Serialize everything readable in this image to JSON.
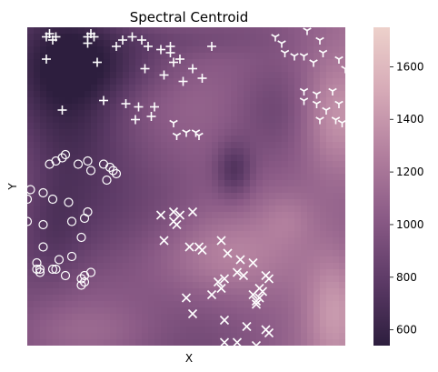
{
  "chart_data": {
    "type": "heatmap",
    "title": "Spectral Centroid",
    "xlabel": "X",
    "ylabel": "Y",
    "x_range": [
      0,
      1
    ],
    "y_range": [
      0,
      1
    ],
    "colorbar": {
      "min": 540,
      "max": 1750,
      "ticks": [
        600,
        800,
        1000,
        1200,
        1400,
        1600
      ],
      "tick_labels": [
        "600",
        "800",
        "1000",
        "1200",
        "1400",
        "1600"
      ],
      "color_stops": [
        "#2d1e3e",
        "#5c3a66",
        "#8a5a86",
        "#b27f9e",
        "#d6aab7",
        "#edd1cb"
      ]
    },
    "field_features": [
      {
        "type": "low",
        "x": 0.12,
        "y": 0.78,
        "sx": 0.18,
        "sy": 0.4,
        "amp": -330
      },
      {
        "type": "low",
        "x": 0.3,
        "y": 0.88,
        "sx": 0.25,
        "sy": 0.1,
        "amp": -170
      },
      {
        "type": "low",
        "x": 0.65,
        "y": 0.55,
        "sx": 0.06,
        "sy": 0.09,
        "amp": -300
      },
      {
        "type": "low",
        "x": 0.78,
        "y": 0.75,
        "sx": 0.14,
        "sy": 0.14,
        "amp": -120
      },
      {
        "type": "low",
        "x": 0.08,
        "y": 0.35,
        "sx": 0.1,
        "sy": 0.18,
        "amp": -140
      },
      {
        "type": "low",
        "x": 0.5,
        "y": 0.96,
        "sx": 0.25,
        "sy": 0.05,
        "amp": -110
      },
      {
        "type": "high",
        "x": 0.97,
        "y": 0.72,
        "sx": 0.12,
        "sy": 0.18,
        "amp": 420
      },
      {
        "type": "high",
        "x": 0.97,
        "y": 0.12,
        "sx": 0.1,
        "sy": 0.18,
        "amp": 380
      },
      {
        "type": "high",
        "x": 0.6,
        "y": 0.28,
        "sx": 0.22,
        "sy": 0.12,
        "amp": 200
      },
      {
        "type": "high",
        "x": 0.2,
        "y": 0.05,
        "sx": 0.2,
        "sy": 0.08,
        "amp": 80
      },
      {
        "type": "high",
        "x": 0.82,
        "y": 0.4,
        "sx": 0.08,
        "sy": 0.08,
        "amp": 120
      }
    ],
    "series": [
      {
        "name": "plus",
        "marker": "+",
        "points": [
          [
            0.06,
            0.97
          ],
          [
            0.08,
            0.96
          ],
          [
            0.07,
            0.98
          ],
          [
            0.09,
            0.97
          ],
          [
            0.06,
            0.9
          ],
          [
            0.19,
            0.97
          ],
          [
            0.2,
            0.98
          ],
          [
            0.21,
            0.97
          ],
          [
            0.19,
            0.95
          ],
          [
            0.3,
            0.96
          ],
          [
            0.33,
            0.97
          ],
          [
            0.36,
            0.96
          ],
          [
            0.28,
            0.94
          ],
          [
            0.38,
            0.94
          ],
          [
            0.42,
            0.93
          ],
          [
            0.45,
            0.94
          ],
          [
            0.45,
            0.92
          ],
          [
            0.48,
            0.9
          ],
          [
            0.46,
            0.89
          ],
          [
            0.52,
            0.87
          ],
          [
            0.55,
            0.84
          ],
          [
            0.58,
            0.94
          ],
          [
            0.22,
            0.89
          ],
          [
            0.37,
            0.87
          ],
          [
            0.43,
            0.85
          ],
          [
            0.49,
            0.83
          ],
          [
            0.24,
            0.77
          ],
          [
            0.31,
            0.76
          ],
          [
            0.35,
            0.75
          ],
          [
            0.4,
            0.75
          ],
          [
            0.39,
            0.72
          ],
          [
            0.34,
            0.71
          ],
          [
            0.11,
            0.74
          ]
        ]
      },
      {
        "name": "tri_down",
        "marker": "Y",
        "points": [
          [
            0.78,
            0.97
          ],
          [
            0.8,
            0.95
          ],
          [
            0.81,
            0.92
          ],
          [
            0.84,
            0.91
          ],
          [
            0.87,
            0.91
          ],
          [
            0.9,
            0.89
          ],
          [
            0.93,
            0.92
          ],
          [
            0.88,
            0.99
          ],
          [
            0.92,
            0.96
          ],
          [
            0.98,
            0.9
          ],
          [
            1.0,
            0.87
          ],
          [
            0.87,
            0.8
          ],
          [
            0.91,
            0.79
          ],
          [
            0.96,
            0.8
          ],
          [
            0.87,
            0.77
          ],
          [
            0.91,
            0.76
          ],
          [
            0.94,
            0.74
          ],
          [
            0.98,
            0.76
          ],
          [
            0.92,
            0.71
          ],
          [
            0.97,
            0.71
          ],
          [
            0.99,
            0.7
          ],
          [
            0.46,
            0.7
          ],
          [
            0.47,
            0.66
          ],
          [
            0.5,
            0.67
          ],
          [
            0.53,
            0.67
          ],
          [
            0.54,
            0.66
          ]
        ]
      },
      {
        "name": "circle",
        "marker": "o",
        "points": [
          [
            0.11,
            0.59
          ],
          [
            0.12,
            0.6
          ],
          [
            0.07,
            0.57
          ],
          [
            0.09,
            0.58
          ],
          [
            0.16,
            0.57
          ],
          [
            0.19,
            0.58
          ],
          [
            0.24,
            0.57
          ],
          [
            0.2,
            0.55
          ],
          [
            0.26,
            0.56
          ],
          [
            0.27,
            0.55
          ],
          [
            0.28,
            0.54
          ],
          [
            0.25,
            0.52
          ],
          [
            0.01,
            0.49
          ],
          [
            0.05,
            0.48
          ],
          [
            0.08,
            0.46
          ],
          [
            0.13,
            0.45
          ],
          [
            0.0,
            0.46
          ],
          [
            0.19,
            0.42
          ],
          [
            0.18,
            0.4
          ],
          [
            0.14,
            0.39
          ],
          [
            0.0,
            0.39
          ],
          [
            0.05,
            0.38
          ],
          [
            0.17,
            0.34
          ],
          [
            0.05,
            0.31
          ],
          [
            0.03,
            0.26
          ],
          [
            0.1,
            0.27
          ],
          [
            0.14,
            0.28
          ],
          [
            0.03,
            0.24
          ],
          [
            0.04,
            0.24
          ],
          [
            0.09,
            0.24
          ],
          [
            0.04,
            0.23
          ],
          [
            0.08,
            0.24
          ],
          [
            0.12,
            0.22
          ],
          [
            0.17,
            0.21
          ],
          [
            0.18,
            0.22
          ],
          [
            0.18,
            0.2
          ],
          [
            0.17,
            0.19
          ],
          [
            0.2,
            0.23
          ]
        ]
      },
      {
        "name": "x",
        "marker": "x",
        "points": [
          [
            0.42,
            0.41
          ],
          [
            0.46,
            0.39
          ],
          [
            0.47,
            0.38
          ],
          [
            0.48,
            0.41
          ],
          [
            0.46,
            0.42
          ],
          [
            0.52,
            0.42
          ],
          [
            0.43,
            0.33
          ],
          [
            0.51,
            0.31
          ],
          [
            0.54,
            0.31
          ],
          [
            0.55,
            0.3
          ],
          [
            0.61,
            0.33
          ],
          [
            0.63,
            0.29
          ],
          [
            0.67,
            0.27
          ],
          [
            0.71,
            0.26
          ],
          [
            0.66,
            0.23
          ],
          [
            0.68,
            0.22
          ],
          [
            0.62,
            0.21
          ],
          [
            0.6,
            0.2
          ],
          [
            0.61,
            0.18
          ],
          [
            0.58,
            0.16
          ],
          [
            0.75,
            0.22
          ],
          [
            0.76,
            0.21
          ],
          [
            0.73,
            0.18
          ],
          [
            0.74,
            0.17
          ],
          [
            0.71,
            0.16
          ],
          [
            0.72,
            0.13
          ],
          [
            0.73,
            0.15
          ],
          [
            0.72,
            0.14
          ],
          [
            0.5,
            0.15
          ],
          [
            0.52,
            0.1
          ],
          [
            0.62,
            0.08
          ],
          [
            0.69,
            0.06
          ],
          [
            0.75,
            0.05
          ],
          [
            0.76,
            0.04
          ],
          [
            0.62,
            0.01
          ],
          [
            0.66,
            0.01
          ],
          [
            0.72,
            0.0
          ]
        ]
      }
    ]
  }
}
